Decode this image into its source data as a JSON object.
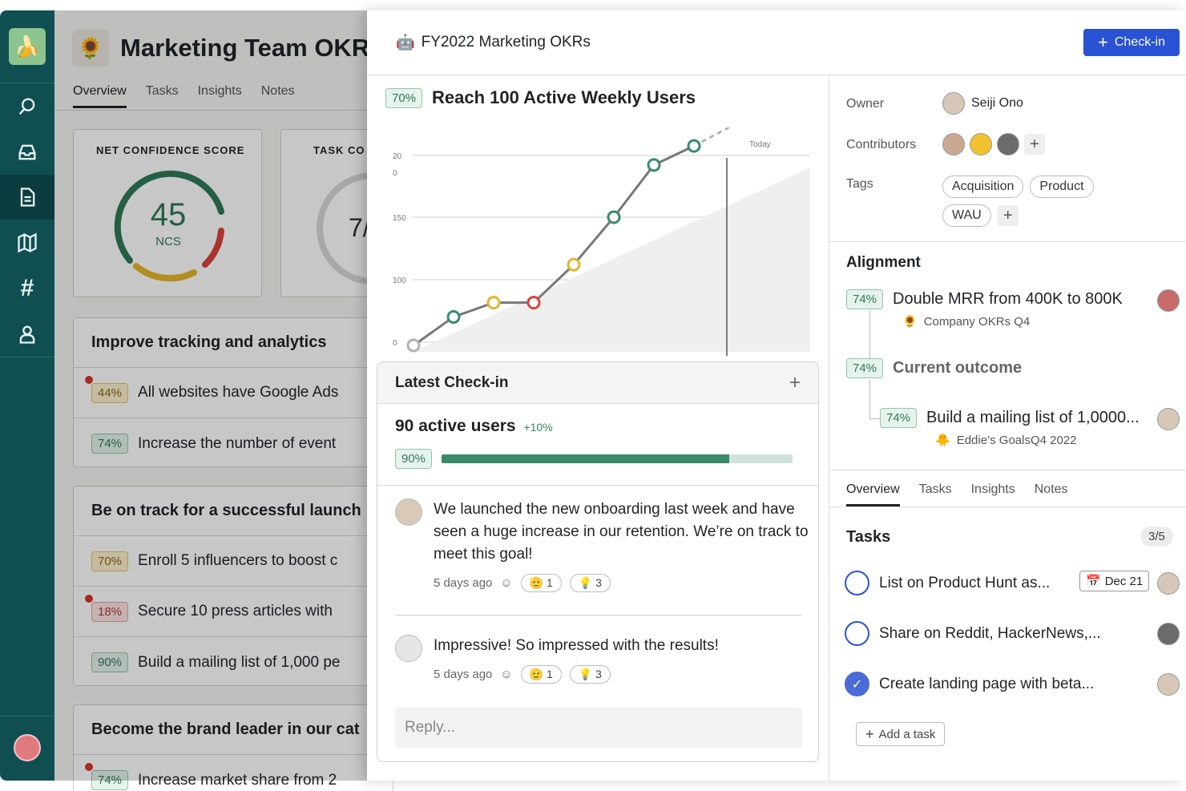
{
  "background_page": {
    "title": "Marketing Team OKRs",
    "tabs": [
      "Overview",
      "Tasks",
      "Insights",
      "Notes"
    ],
    "ncs_label": "NET CONFIDENCE SCORE",
    "ncs_value": "45",
    "ncs_unit": "NCS",
    "task_label": "TASK CO",
    "task_value": "7/",
    "sections": [
      {
        "title": "Improve tracking and analytics",
        "rows": [
          {
            "pct": "44%",
            "text": "All websites have Google Ads"
          },
          {
            "pct": "74%",
            "text": "Increase the number of event"
          }
        ]
      },
      {
        "title": "Be on track for a successful launch",
        "rows": [
          {
            "pct": "70%",
            "text": "Enroll 5 influencers to boost c"
          },
          {
            "pct": "18%",
            "text": "Secure 10 press articles with"
          },
          {
            "pct": "90%",
            "text": "Build a mailing list of 1,000 pe"
          }
        ]
      },
      {
        "title": "Become the brand leader in our cat",
        "rows": [
          {
            "pct": "74%",
            "text": "Increase market share from 2"
          }
        ]
      }
    ]
  },
  "panel": {
    "title": "FY2022 Marketing OKRs",
    "checkin_label": "Check-in",
    "goal_pct": "70%",
    "goal_title": "Reach 100 Active Weekly Users",
    "latest_checkin_title": "Latest Check-in",
    "checkin_value": "90 active users",
    "checkin_delta": "+10%",
    "checkin_pct": "90%",
    "progress": 0.82,
    "comments": [
      {
        "text": "We launched the new onboarding last week and have seen a huge increase in our retention. We’re on track to meet this goal!",
        "time": "5 days ago",
        "r1": "1",
        "r2": "3"
      },
      {
        "text": "Impressive! So impressed with the results!",
        "time": "5 days ago",
        "r1": "1",
        "r2": "3"
      }
    ],
    "reply_placeholder": "Reply...",
    "owner_label": "Owner",
    "owner_name": "Seiji Ono",
    "contributors_label": "Contributors",
    "tags_label": "Tags",
    "tags": [
      "Acquisition",
      "Product",
      "WAU"
    ],
    "alignment_title": "Alignment",
    "alignment": [
      {
        "pct": "74%",
        "title": "Double MRR from 400K to 800K",
        "sub": "Company OKRs Q4"
      },
      {
        "pct": "74%",
        "title": "Current outcome"
      },
      {
        "pct": "74%",
        "title": "Build a mailing list of 1,0000...",
        "sub": "Eddie’s GoalsQ4 2022"
      }
    ],
    "tabs": [
      "Overview",
      "Tasks",
      "Insights",
      "Notes"
    ],
    "tasks_title": "Tasks",
    "tasks_count": "3/5",
    "tasks": [
      {
        "text": "List on Product Hunt as...",
        "due": "Dec 21",
        "done": false
      },
      {
        "text": "Share on Reddit, HackerNews,...",
        "done": false
      },
      {
        "text": "Create landing page with beta...",
        "done": true
      }
    ],
    "add_task": "Add a task"
  },
  "chart_data": {
    "type": "line",
    "marker_label": "Today",
    "y_ticks": [
      "20\n0",
      "150",
      "100",
      "0"
    ],
    "ylim": [
      0,
      200
    ],
    "points": [
      {
        "y": 0,
        "status": "none"
      },
      {
        "y": 30,
        "status": "green"
      },
      {
        "y": 45,
        "status": "yellow"
      },
      {
        "y": 45,
        "status": "red"
      },
      {
        "y": 85,
        "status": "yellow"
      },
      {
        "y": 135,
        "status": "green"
      },
      {
        "y": 190,
        "status": "green"
      },
      {
        "y": 210,
        "status": "green"
      }
    ],
    "colors": {
      "green": "#3a8a6a",
      "yellow": "#e5b52b",
      "red": "#d9433a",
      "none": "#b0b0b0"
    }
  }
}
